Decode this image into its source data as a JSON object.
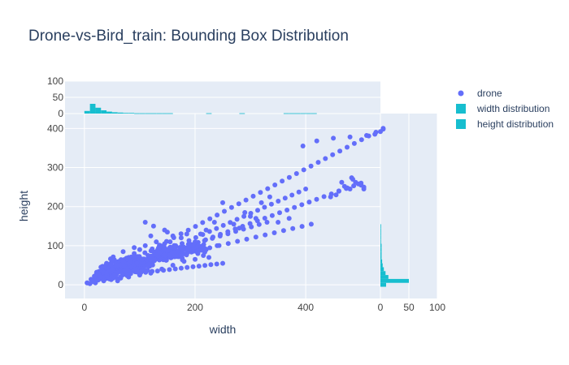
{
  "colors": {
    "background": "#ffffff",
    "plot_bg": "#e5ecf6",
    "grid": "#ffffff",
    "text": "#2a3f5f",
    "tick": "#444444",
    "scatter": "#636efa",
    "hist": "#17becf"
  },
  "chart_data": {
    "type": "scatter",
    "title": "Drone-vs-Bird_train: Bounding Box Distribution",
    "xlabel": "width",
    "ylabel": "height",
    "xlim": [
      -35,
      535
    ],
    "ylim": [
      -35,
      438
    ],
    "x_ticks": [
      "0",
      "200",
      "400"
    ],
    "y_ticks": [
      "0",
      "100",
      "200",
      "300",
      "400"
    ],
    "grid": true,
    "legend": {
      "placement": "top-right",
      "entries": [
        {
          "label": "drone",
          "symbol": "circle",
          "color": "#636efa"
        },
        {
          "label": "width distribution",
          "symbol": "square",
          "color": "#17becf"
        },
        {
          "label": "height distribution",
          "symbol": "square",
          "color": "#17becf"
        }
      ]
    },
    "series": [
      {
        "legend_label": "drone",
        "segments": [
          {
            "from": [
              5,
              5
            ],
            "to": [
              540,
              400
            ],
            "n": 42
          },
          {
            "from": [
              5,
              5
            ],
            "to": [
              500,
              260
            ],
            "n": 38
          },
          {
            "from": [
              40,
              20
            ],
            "to": [
              400,
              245
            ],
            "n": 30
          },
          {
            "from": [
              60,
              40
            ],
            "to": [
              410,
              155
            ],
            "n": 22
          },
          {
            "from": [
              90,
              60
            ],
            "to": [
              330,
              160
            ],
            "n": 18
          },
          {
            "from": [
              100,
              30
            ],
            "to": [
              250,
              55
            ],
            "n": 15
          },
          {
            "from": [
              20,
              10
            ],
            "to": [
              200,
              110
            ],
            "n": 16
          }
        ],
        "points": [
          [
            395,
            355
          ],
          [
            420,
            368
          ],
          [
            450,
            375
          ],
          [
            480,
            378
          ],
          [
            510,
            382
          ],
          [
            525,
            385
          ],
          [
            535,
            392
          ],
          [
            540,
            398
          ],
          [
            485,
            270
          ],
          [
            490,
            262
          ],
          [
            495,
            258
          ],
          [
            500,
            255
          ],
          [
            505,
            250
          ],
          [
            470,
            252
          ],
          [
            475,
            248
          ],
          [
            480,
            245
          ],
          [
            460,
            240
          ],
          [
            455,
            230
          ],
          [
            445,
            225
          ],
          [
            505,
            245
          ],
          [
            465,
            262
          ],
          [
            483,
            274
          ],
          [
            335,
            225
          ],
          [
            320,
            210
          ],
          [
            250,
            210
          ],
          [
            300,
            175
          ],
          [
            290,
            185
          ],
          [
            310,
            170
          ],
          [
            270,
            155
          ],
          [
            280,
            145
          ],
          [
            235,
            160
          ],
          [
            220,
            140
          ],
          [
            210,
            130
          ],
          [
            350,
            160
          ],
          [
            370,
            170
          ],
          [
            145,
            140
          ],
          [
            125,
            150
          ],
          [
            110,
            160
          ],
          [
            175,
            120
          ],
          [
            150,
            135
          ],
          [
            120,
            125
          ],
          [
            185,
            130
          ],
          [
            30,
            20
          ],
          [
            40,
            30
          ],
          [
            50,
            40
          ],
          [
            60,
            50
          ],
          [
            70,
            60
          ],
          [
            80,
            70
          ],
          [
            90,
            80
          ],
          [
            100,
            90
          ],
          [
            35,
            10
          ],
          [
            45,
            15
          ],
          [
            55,
            25
          ],
          [
            65,
            20
          ],
          [
            75,
            35
          ],
          [
            85,
            45
          ],
          [
            95,
            55
          ],
          [
            105,
            65
          ],
          [
            115,
            75
          ],
          [
            125,
            85
          ],
          [
            135,
            95
          ],
          [
            145,
            105
          ],
          [
            155,
            110
          ],
          [
            165,
            100
          ],
          [
            175,
            95
          ],
          [
            185,
            90
          ],
          [
            195,
            85
          ],
          [
            205,
            80
          ],
          [
            215,
            75
          ],
          [
            225,
            70
          ],
          [
            60,
            10
          ],
          [
            80,
            20
          ],
          [
            100,
            25
          ],
          [
            120,
            30
          ],
          [
            140,
            40
          ],
          [
            160,
            50
          ],
          [
            180,
            60
          ],
          [
            200,
            65
          ],
          [
            220,
            90
          ],
          [
            240,
            100
          ],
          [
            50,
            60
          ],
          [
            40,
            55
          ],
          [
            30,
            45
          ],
          [
            70,
            85
          ],
          [
            90,
            95
          ],
          [
            110,
            100
          ],
          [
            130,
            110
          ],
          [
            160,
            125
          ],
          [
            20,
            5
          ],
          [
            15,
            8
          ],
          [
            25,
            12
          ],
          [
            10,
            3
          ],
          [
            12,
            14
          ],
          [
            18,
            22
          ],
          [
            22,
            30
          ]
        ],
        "clusters": [
          {
            "center": [
              80,
              48
            ],
            "spread": [
              55,
              30
            ],
            "n": 260
          },
          {
            "center": [
              150,
              80
            ],
            "spread": [
              45,
              25
            ],
            "n": 120
          },
          {
            "center": [
              40,
              25
            ],
            "spread": [
              28,
              18
            ],
            "n": 120
          },
          {
            "center": [
              200,
              95
            ],
            "spread": [
              30,
              15
            ],
            "n": 50
          }
        ]
      },
      {
        "legend_label": "width distribution",
        "axis": "top",
        "count_ticks": [
          "0",
          "50",
          "100"
        ],
        "count_range": [
          0,
          100
        ],
        "bin_width": 10,
        "bins_start": 0,
        "counts": [
          8,
          30,
          18,
          10,
          6,
          4,
          3,
          2,
          2,
          1,
          1,
          1,
          1,
          1,
          1,
          1,
          0,
          0,
          0,
          0,
          0,
          0,
          1,
          0,
          0,
          0,
          0,
          0,
          1,
          0,
          0,
          0,
          0,
          0,
          0,
          0,
          1,
          1,
          1,
          1,
          1,
          1
        ]
      },
      {
        "legend_label": "height distribution",
        "axis": "right",
        "count_ticks": [
          "0",
          "50",
          "100"
        ],
        "count_range": [
          0,
          100
        ],
        "bin_width": 10,
        "bins_start": -5,
        "counts": [
          10,
          50,
          14,
          9,
          6,
          4,
          3,
          2,
          2,
          2,
          2,
          1,
          1,
          1,
          1,
          1
        ]
      }
    ]
  }
}
